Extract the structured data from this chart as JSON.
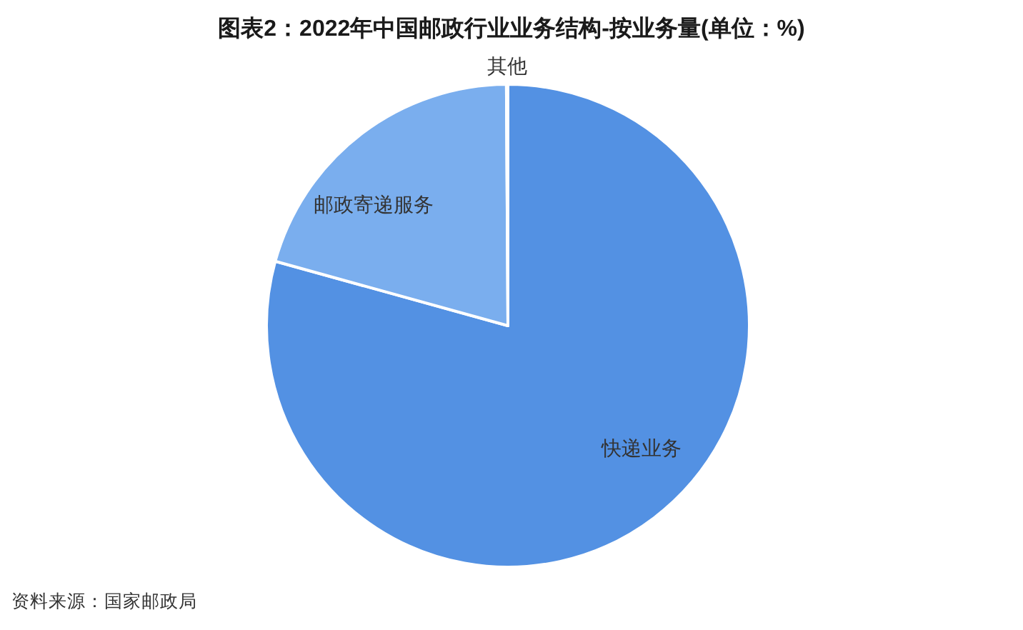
{
  "chart_data": {
    "type": "pie",
    "title": "图表2：2022年中国邮政行业业务结构-按业务量(单位：%)",
    "categories": [
      "快递业务",
      "邮政寄递服务",
      "其他"
    ],
    "values": [
      79.3,
      20.6,
      0.1
    ],
    "colors": [
      "#5391e3",
      "#7aaeee",
      "#6aa0e8"
    ],
    "annotations": [
      "资料来源：国家邮政局"
    ]
  }
}
